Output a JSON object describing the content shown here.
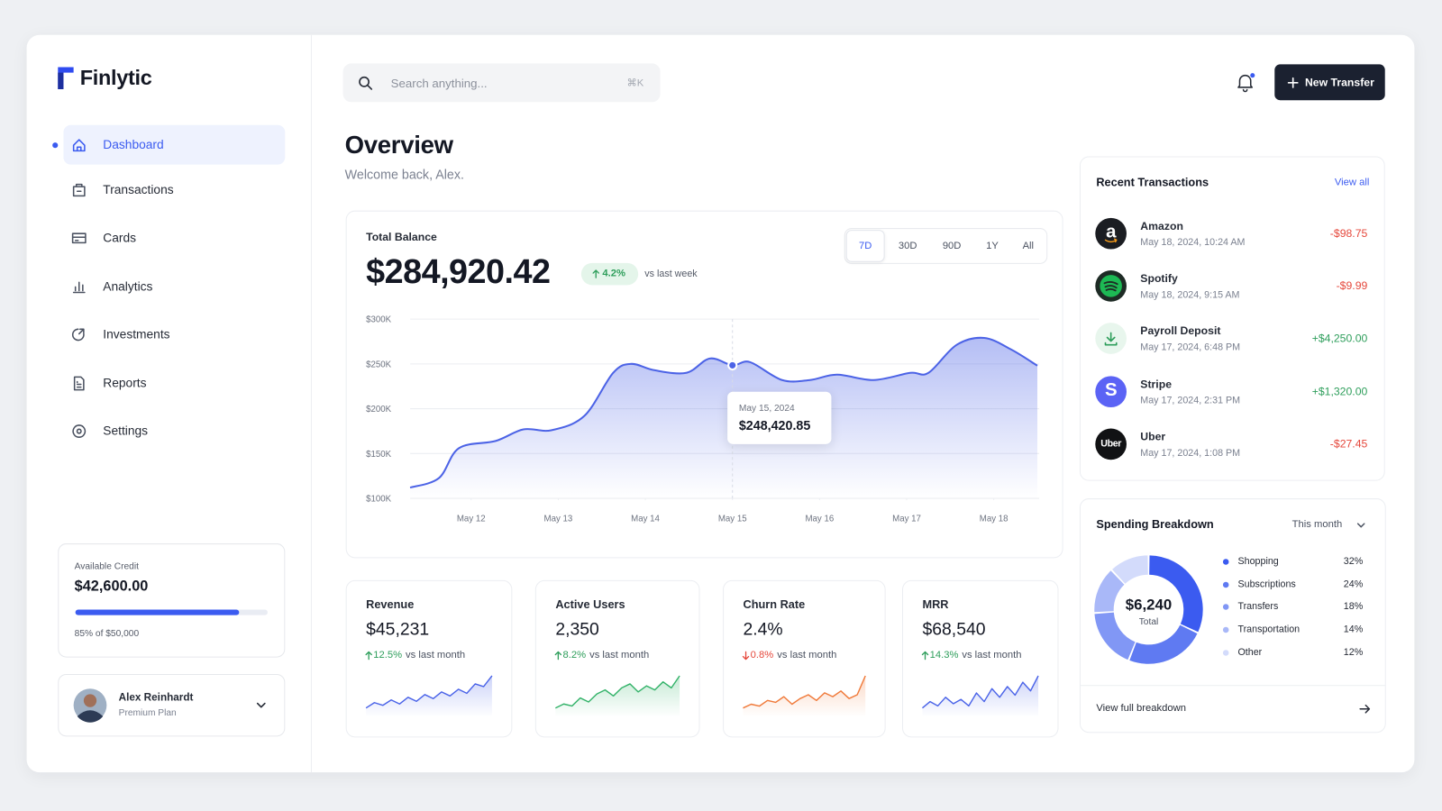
{
  "brand": "Finlytic",
  "nav": [
    "Dashboard",
    "Transactions",
    "Cards",
    "Analytics",
    "Investments",
    "Reports",
    "Settings"
  ],
  "nav_active": 0,
  "credit": {
    "label": "Available Credit",
    "amount": "$42,600.00",
    "used_percent": 85,
    "note": "85% of $50,000",
    "color": "#3b5bf0"
  },
  "user": {
    "name": "Alex Reinhardt",
    "plan": "Premium Plan"
  },
  "search": {
    "placeholder": "Search anything...",
    "shortcut": "⌘K"
  },
  "action": "New Transfer",
  "header": {
    "title": "Overview",
    "subtitle": "Welcome back, Alex."
  },
  "balance": {
    "label": "Total Balance",
    "amount": "$284,920.42",
    "change": "4.2%",
    "change_note": "vs last week",
    "ranges": [
      "7D",
      "30D",
      "90D",
      "1Y",
      "All"
    ],
    "active_range": 0
  },
  "chart_data": {
    "type": "area",
    "color": "#4c63e6",
    "x": [
      11.3,
      11.63,
      11.86,
      12.28,
      12.6,
      12.92,
      13.3,
      13.63,
      13.84,
      14.1,
      14.47,
      14.74,
      15,
      15.2,
      15.57,
      15.89,
      16.2,
      16.62,
      17.04,
      17.25,
      17.57,
      17.89,
      18.2,
      18.5
    ],
    "values": [
      112000,
      122600,
      156000,
      164000,
      177000,
      176000,
      192000,
      240000,
      250000,
      243000,
      240000,
      256000,
      248420.85,
      252000,
      232000,
      232000,
      238000,
      232000,
      240000,
      240000,
      271000,
      279000,
      266000,
      248000
    ],
    "xlim": [
      11.3,
      18.5
    ],
    "xticks": [
      {
        "value": 12,
        "label": "May 12"
      },
      {
        "value": 13,
        "label": "May 13"
      },
      {
        "value": 14,
        "label": "May 14"
      },
      {
        "value": 15,
        "label": "May 15"
      },
      {
        "value": 16,
        "label": "May 16"
      },
      {
        "value": 17,
        "label": "May 17"
      },
      {
        "value": 18,
        "label": "May 18"
      }
    ],
    "ylim": [
      100000,
      300000
    ],
    "yticks": [
      {
        "value": 100000,
        "label": "$100K"
      },
      {
        "value": 150000,
        "label": "$150K"
      },
      {
        "value": 200000,
        "label": "$200K"
      },
      {
        "value": 250000,
        "label": "$250K"
      },
      {
        "value": 300000,
        "label": "$300K"
      }
    ],
    "grid": true,
    "tooltip": {
      "index": 12,
      "date": "May 15, 2024",
      "value": "$248,420.85"
    }
  },
  "kpis": [
    {
      "label": "Revenue",
      "value": "$45,231",
      "change": "12.5%",
      "direction": "up",
      "change_note": "vs last month",
      "color": "#4a63e8",
      "trend": [
        10,
        14,
        12,
        16,
        13,
        18,
        15,
        20,
        17,
        22,
        19,
        24,
        21,
        28,
        26,
        34
      ]
    },
    {
      "label": "Active Users",
      "value": "2,350",
      "change": "8.2%",
      "direction": "up",
      "change_note": "vs last month",
      "color": "#34b36a",
      "trend": [
        8,
        10,
        9,
        13,
        11,
        15,
        17,
        14,
        18,
        20,
        16,
        19,
        17,
        21,
        18,
        24
      ]
    },
    {
      "label": "Churn Rate",
      "value": "2.4%",
      "change": "0.8%",
      "direction": "down",
      "change_note": "vs last month",
      "color": "#f07a3a",
      "trend": [
        9,
        11,
        10,
        13,
        12,
        15,
        11,
        14,
        16,
        13,
        17,
        15,
        18,
        14,
        16,
        26
      ]
    },
    {
      "label": "MRR",
      "value": "$68,540",
      "change": "14.3%",
      "direction": "up",
      "change_note": "vs last month",
      "color": "#4a63e8",
      "trend": [
        12,
        15,
        13,
        17,
        14,
        16,
        13,
        19,
        15,
        21,
        17,
        22,
        18,
        24,
        20,
        27
      ]
    }
  ],
  "transactions": {
    "title": "Recent Transactions",
    "link": "View all",
    "items": [
      {
        "name": "Amazon",
        "date": "May 18, 2024, 10:24 AM",
        "amount": "-$98.75",
        "icon_text": "a",
        "icon_color": "#1b1d22"
      },
      {
        "name": "Spotify",
        "date": "May 18, 2024, 9:15 AM",
        "amount": "-$9.99",
        "icon_color": "#1e2b25"
      },
      {
        "name": "Payroll Deposit",
        "date": "May 17, 2024, 6:48 PM",
        "amount": "+$4,250.00",
        "icon_color": "#e8f6ed"
      },
      {
        "name": "Stripe",
        "date": "May 17, 2024, 2:31 PM",
        "amount": "+$1,320.00",
        "icon_text": "S",
        "icon_color": "#5b63f5"
      },
      {
        "name": "Uber",
        "date": "May 17, 2024, 1:08 PM",
        "amount": "-$27.45",
        "icon_text": "Uber",
        "icon_color": "#111214"
      }
    ]
  },
  "spending": {
    "type": "donut",
    "title": "Spending Breakdown",
    "period": "This month",
    "total": "$6,240",
    "total_label": "Total",
    "categories": [
      "Shopping",
      "Subscriptions",
      "Transfers",
      "Transportation",
      "Other"
    ],
    "values": [
      32,
      24,
      18,
      14,
      12
    ],
    "value_labels": [
      "32%",
      "24%",
      "18%",
      "14%",
      "12%"
    ],
    "colors": [
      "#3b5bf0",
      "#5f7af2",
      "#8197f5",
      "#a9b8f8",
      "#d3dbfb"
    ],
    "link": "View full breakdown"
  }
}
